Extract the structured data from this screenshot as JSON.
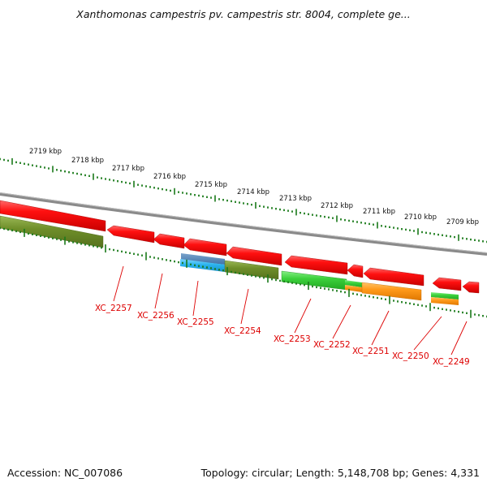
{
  "title": "Xanthomonas campestris pv. campestris str. 8004, complete ge...",
  "footer": {
    "accession": "Accession: NC_007086",
    "summary": "Topology: circular; Length: 5,148,708 bp; Genes: 4,331"
  },
  "colors": {
    "backbone": "#888888",
    "forward_gene": "#ee0000",
    "reverse_olive": "#6f8f2a",
    "reverse_green": "#3cd13c",
    "reverse_orange": "#ff9a1a",
    "reverse_blue": "#2ab4ee",
    "reverse_steel": "#3f73a8",
    "ticks": "#1a7a1a",
    "label": "#dd0000"
  },
  "scale": {
    "unit": "kbp",
    "labels": [
      "2719 kbp",
      "2718 kbp",
      "2717 kbp",
      "2716 kbp",
      "2715 kbp",
      "2714 kbp",
      "2713 kbp",
      "2712 kbp",
      "2711 kbp",
      "2710 kbp",
      "2709 kbp"
    ]
  },
  "genes": [
    {
      "name": "XC_2257"
    },
    {
      "name": "XC_2256"
    },
    {
      "name": "XC_2255"
    },
    {
      "name": "XC_2254"
    },
    {
      "name": "XC_2253"
    },
    {
      "name": "XC_2252"
    },
    {
      "name": "XC_2251"
    },
    {
      "name": "XC_2250"
    },
    {
      "name": "XC_2249"
    }
  ]
}
